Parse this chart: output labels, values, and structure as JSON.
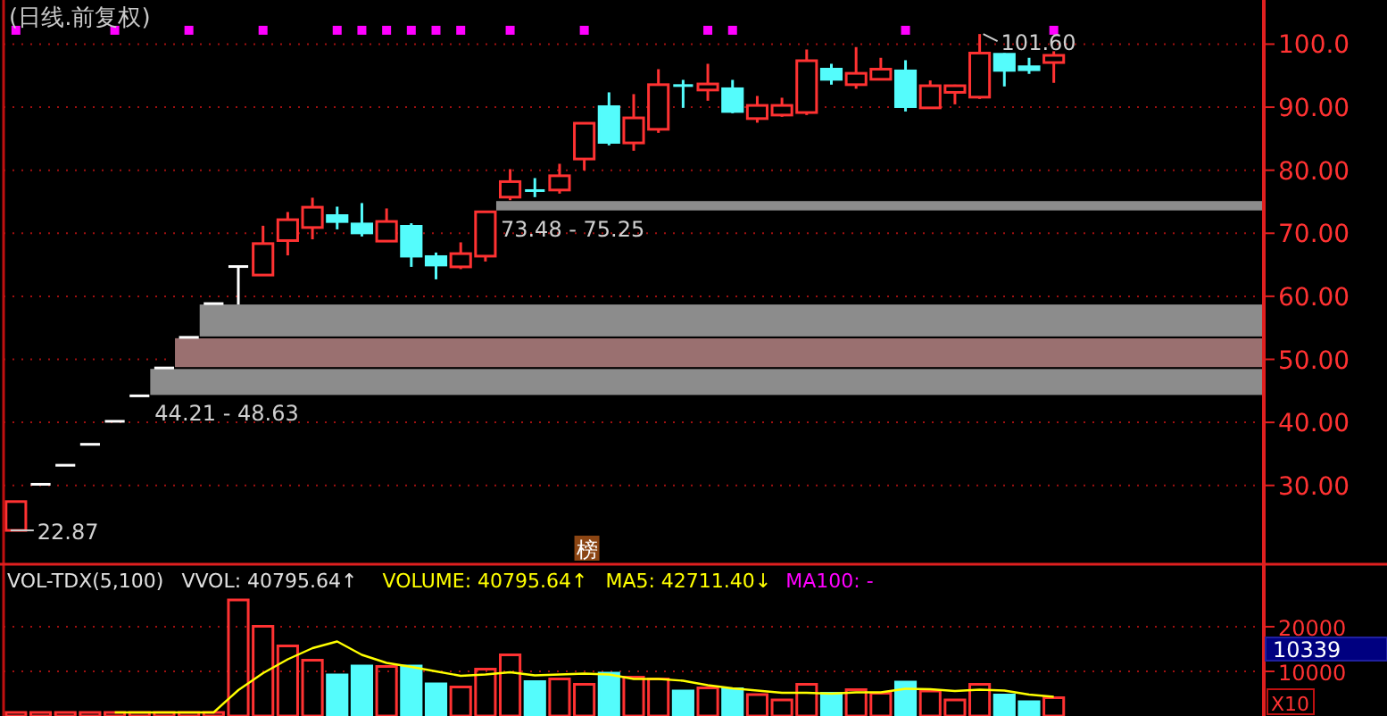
{
  "chart_data": [
    {
      "type": "candlestick",
      "title": "(日线.前复权)",
      "categories": [
        null,
        null,
        null,
        null,
        null,
        null,
        null,
        null,
        null,
        null,
        null,
        null,
        null,
        null,
        null,
        null,
        null,
        null,
        null,
        null,
        null,
        null,
        null,
        null,
        null,
        null,
        null,
        null,
        null,
        null,
        null,
        null,
        null,
        null,
        null,
        null,
        null,
        null,
        null,
        null,
        null,
        null,
        null,
        null,
        null,
        null,
        null,
        null,
        null,
        null,
        null
      ],
      "ohlc": [
        [
          22.87,
          27.44,
          22.87,
          27.44
        ],
        [
          30.18,
          30.18,
          30.18,
          30.18
        ],
        [
          33.2,
          33.2,
          33.2,
          33.2
        ],
        [
          36.52,
          36.52,
          36.52,
          36.52
        ],
        [
          40.17,
          40.17,
          40.17,
          40.17
        ],
        [
          44.21,
          44.21,
          44.21,
          44.21
        ],
        [
          48.63,
          48.63,
          48.63,
          48.63
        ],
        [
          53.49,
          53.49,
          53.49,
          53.49
        ],
        [
          58.84,
          58.84,
          58.84,
          58.84
        ],
        [
          64.72,
          64.72,
          58.7,
          64.72
        ],
        [
          63.37,
          71.19,
          63.37,
          68.36
        ],
        [
          68.84,
          73.37,
          66.49,
          72.15
        ],
        [
          70.91,
          75.64,
          69.04,
          74.13
        ],
        [
          72.8,
          74.22,
          70.62,
          71.86
        ],
        [
          71.47,
          74.79,
          69.49,
          70.06
        ],
        [
          68.75,
          73.94,
          68.75,
          71.87
        ],
        [
          71.1,
          71.59,
          64.67,
          66.37
        ],
        [
          66.29,
          66.94,
          62.69,
          64.96
        ],
        [
          64.67,
          68.56,
          64.31,
          66.77
        ],
        [
          66.37,
          73.48,
          65.52,
          73.4
        ],
        [
          75.73,
          80.17,
          75.25,
          78.19
        ],
        [
          76.97,
          78.75,
          75.73,
          76.57
        ],
        [
          76.86,
          81.02,
          76.29,
          79.12
        ],
        [
          81.78,
          87.45,
          79.97,
          87.45
        ],
        [
          90.08,
          92.35,
          83.94,
          84.42
        ],
        [
          84.33,
          92.07,
          83.09,
          88.3
        ],
        [
          86.49,
          96.03,
          85.92,
          93.57
        ],
        [
          93.57,
          94.33,
          89.89,
          93.29
        ],
        [
          92.72,
          96.88,
          91.02,
          93.68
        ],
        [
          92.92,
          94.33,
          89.04,
          89.32
        ],
        [
          88.19,
          91.78,
          87.54,
          90.28
        ],
        [
          88.75,
          91.5,
          88.47,
          90.28
        ],
        [
          89.15,
          99.15,
          88.75,
          97.37
        ],
        [
          96.03,
          96.88,
          93.57,
          94.42
        ],
        [
          93.57,
          99.53,
          92.92,
          95.37
        ],
        [
          94.42,
          97.83,
          94.42,
          96.03
        ],
        [
          95.75,
          97.45,
          89.32,
          90.08
        ],
        [
          89.89,
          94.24,
          89.89,
          93.4
        ],
        [
          92.35,
          93.57,
          90.45,
          93.4
        ],
        [
          91.59,
          101.6,
          91.3,
          98.58
        ],
        [
          98.39,
          98.58,
          93.29,
          95.84
        ],
        [
          96.41,
          97.83,
          95.28,
          95.94
        ],
        [
          97.08,
          98.87,
          93.86,
          98.22
        ],
        null,
        null,
        null,
        null,
        null,
        null,
        null,
        null
      ],
      "colors": [
        "#ff3232",
        "#ffffff",
        "#ffffff",
        "#ffffff",
        "#ffffff",
        "#ffffff",
        "#ffffff",
        "#ffffff",
        "#ffffff",
        "#ffffff",
        "#ff3232",
        "#ff3232",
        "#ff3232",
        "#54fcfc",
        "#54fcfc",
        "#ff3232",
        "#54fcfc",
        "#54fcfc",
        "#ff3232",
        "#ff3232",
        "#ff3232",
        "#54fcfc",
        "#ff3232",
        "#ff3232",
        "#54fcfc",
        "#ff3232",
        "#ff3232",
        "#54fcfc",
        "#ff3232",
        "#54fcfc",
        "#ff3232",
        "#ff3232",
        "#ff3232",
        "#54fcfc",
        "#ff3232",
        "#ff3232",
        "#54fcfc",
        "#ff3232",
        "#ff3232",
        "#ff3232",
        "#54fcfc",
        "#54fcfc",
        "#ff3232",
        null,
        null,
        null,
        null,
        null,
        null,
        null,
        null
      ],
      "series": [
        {
          "type": "scatter",
          "color": "#ff00ff",
          "marker": "square",
          "values": [
            102.2,
            null,
            null,
            null,
            102.2,
            null,
            null,
            102.2,
            null,
            null,
            102.2,
            null,
            null,
            102.2,
            102.2,
            102.2,
            102.2,
            102.2,
            102.2,
            null,
            102.2,
            null,
            null,
            102.2,
            null,
            null,
            null,
            null,
            102.2,
            102.2,
            null,
            null,
            null,
            null,
            null,
            null,
            102.2,
            null,
            null,
            null,
            null,
            null,
            102.2,
            null,
            null,
            null,
            null,
            null,
            null,
            null,
            null
          ]
        }
      ],
      "ylim": [
        17.5,
        107
      ],
      "yticks": [
        {
          "value": 100,
          "label": "100.0"
        },
        {
          "value": 90,
          "label": "90.00"
        },
        {
          "value": 80,
          "label": "80.00"
        },
        {
          "value": 70,
          "label": "70.00"
        },
        {
          "value": 60,
          "label": "60.00"
        },
        {
          "value": 50,
          "label": "50.00"
        },
        {
          "value": 40,
          "label": "40.00"
        },
        {
          "value": 30,
          "label": "30.00"
        }
      ],
      "grid": "y",
      "tick_labels": "y",
      "bands": [
        {
          "axis": "y",
          "from": 44.21,
          "to": 48.63,
          "label": "44.21 - 48.63",
          "color": "#8c8c8c"
        },
        {
          "axis": "y",
          "from": 48.63,
          "to": 53.49,
          "label": null,
          "color": "#9a7070"
        },
        {
          "axis": "y",
          "from": 53.49,
          "to": 58.84,
          "label": null,
          "color": "#8c8c8c"
        },
        {
          "axis": "y",
          "from": 73.48,
          "to": 75.25,
          "label": "73.48 - 75.25",
          "color": "#8c8c8c"
        }
      ],
      "annotations": [
        "101.60",
        "22.87",
        "榜"
      ]
    },
    {
      "type": "bar",
      "categories": [
        null,
        null,
        null,
        null,
        null,
        null,
        null,
        null,
        null,
        null,
        null,
        null,
        null,
        null,
        null,
        null,
        null,
        null,
        null,
        null,
        null,
        null,
        null,
        null,
        null,
        null,
        null,
        null,
        null,
        null,
        null,
        null,
        null,
        null,
        null,
        null,
        null,
        null,
        null,
        null,
        null,
        null,
        null,
        null,
        null,
        null,
        null,
        null,
        null,
        null,
        null
      ],
      "series": [
        {
          "type": "bar",
          "colors": [
            "#ff3232",
            "#ff3232",
            "#ff3232",
            "#ff3232",
            "#ff3232",
            "#ff3232",
            "#ff3232",
            "#ff3232",
            "#ff3232",
            "#ff3232",
            "#ff3232",
            "#ff3232",
            "#ff3232",
            "#54fcfc",
            "#54fcfc",
            "#ff3232",
            "#54fcfc",
            "#54fcfc",
            "#ff3232",
            "#ff3232",
            "#ff3232",
            "#54fcfc",
            "#ff3232",
            "#ff3232",
            "#54fcfc",
            "#ff3232",
            "#ff3232",
            "#54fcfc",
            "#ff3232",
            "#54fcfc",
            "#ff3232",
            "#ff3232",
            "#ff3232",
            "#54fcfc",
            "#ff3232",
            "#ff3232",
            "#54fcfc",
            "#ff3232",
            "#ff3232",
            "#ff3232",
            "#54fcfc",
            "#54fcfc",
            "#ff3232",
            null,
            null,
            null,
            null,
            null,
            null,
            null,
            null
          ],
          "values": [
            800,
            800,
            800,
            800,
            800,
            800,
            800,
            800,
            800,
            26000,
            20100,
            15700,
            12500,
            9200,
            11200,
            11100,
            11200,
            7200,
            6500,
            10500,
            13700,
            7700,
            8300,
            7100,
            9600,
            8700,
            8300,
            5600,
            6300,
            6100,
            4800,
            3600,
            7100,
            5100,
            5900,
            5100,
            7600,
            5600,
            3600,
            7100,
            4700,
            3200,
            4100,
            null,
            null,
            null,
            null,
            null,
            null,
            null,
            null
          ]
        },
        {
          "type": "line",
          "color": "#ffff00",
          "values": [
            null,
            null,
            null,
            null,
            800,
            800,
            800,
            800,
            800,
            5800,
            9600,
            12700,
            15200,
            16700,
            13700,
            11900,
            11000,
            10000,
            9000,
            9300,
            9800,
            9100,
            9300,
            9500,
            9300,
            8300,
            8300,
            7900,
            6900,
            6200,
            5700,
            5200,
            5200,
            5000,
            5300,
            5300,
            6100,
            6000,
            5600,
            5900,
            5700,
            4800,
            4300,
            null,
            null,
            null,
            null,
            null,
            null,
            null,
            null
          ]
        }
      ],
      "ylim": [
        0,
        34000
      ],
      "yticks": [
        10000,
        20000
      ],
      "grid": "y",
      "tick_labels": "y",
      "annotations": [
        "VOL-TDX(5,100)",
        "VVOL: 40795.64↑",
        "VOLUME: 40795.64↑",
        "MA5: 42711.40↓",
        "MA100: -",
        "10339",
        "X10"
      ]
    }
  ]
}
